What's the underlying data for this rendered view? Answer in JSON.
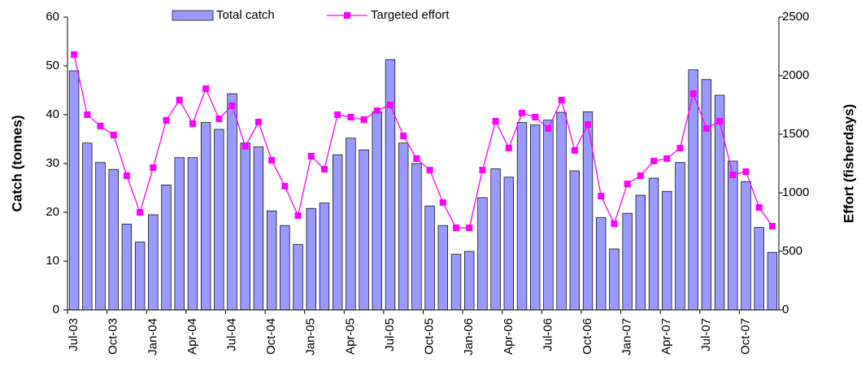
{
  "chart_data": {
    "type": "bar",
    "y_label": "Catch (tonnes)",
    "y2_label": "Effort (fisherdays)",
    "categories": [
      "Jul-03",
      null,
      null,
      "Oct-03",
      null,
      null,
      "Jan-04",
      null,
      null,
      "Apr-04",
      null,
      null,
      "Jul-04",
      null,
      null,
      "Oct-04",
      null,
      null,
      "Jan-05",
      null,
      null,
      "Apr-05",
      null,
      null,
      "Jul-05",
      null,
      null,
      "Oct-05",
      null,
      null,
      "Jan-06",
      null,
      null,
      "Apr-06",
      null,
      null,
      "Jul-06",
      null,
      null,
      "Oct-06",
      null,
      null,
      "Jan-07",
      null,
      null,
      "Apr-07",
      null,
      null,
      "Jul-07",
      null,
      null,
      "Oct-07",
      null,
      null
    ],
    "series": [
      {
        "name": "Total catch",
        "type": "bar",
        "color": "#9999ff",
        "values": [
          49,
          34.2,
          30.2,
          28.8,
          17.6,
          13.9,
          19.5,
          25.6,
          31.2,
          31.2,
          38.4,
          37,
          44.3,
          34.2,
          33.4,
          20.3,
          17.3,
          13.4,
          20.8,
          21.9,
          31.8,
          35.2,
          32.8,
          40.6,
          51.3,
          34.2,
          30,
          21.3,
          17.3,
          11.4,
          12,
          23,
          28.9,
          27.2,
          38.4,
          37.9,
          38.9,
          40.5,
          28.5,
          40.6,
          18.9,
          12.5,
          19.8,
          23.5,
          27,
          24.3,
          30.2,
          49.2,
          47.2,
          44,
          30.5,
          26.3,
          16.9,
          11.8
        ]
      },
      {
        "name": "Targeted effort",
        "type": "line",
        "axis": "y2",
        "color": "#ff00ff",
        "values": [
          2180,
          1667,
          1570,
          1493,
          1146,
          833,
          1215,
          1618,
          1792,
          1590,
          1889,
          1632,
          1743,
          1396,
          1604,
          1278,
          1056,
          806,
          1313,
          1201,
          1667,
          1646,
          1625,
          1701,
          1750,
          1486,
          1292,
          1194,
          917,
          701,
          701,
          1194,
          1611,
          1382,
          1681,
          1646,
          1549,
          1792,
          1361,
          1583,
          972,
          736,
          1076,
          1146,
          1271,
          1292,
          1382,
          1847,
          1549,
          1611,
          1153,
          1181,
          875,
          715
        ]
      }
    ],
    "ylim": [
      0,
      60
    ],
    "yticks": [
      0,
      10,
      20,
      30,
      40,
      50,
      60
    ],
    "y2lim": [
      0,
      2500
    ],
    "y2ticks": [
      0,
      500,
      1000,
      1500,
      2000,
      2500
    ]
  }
}
